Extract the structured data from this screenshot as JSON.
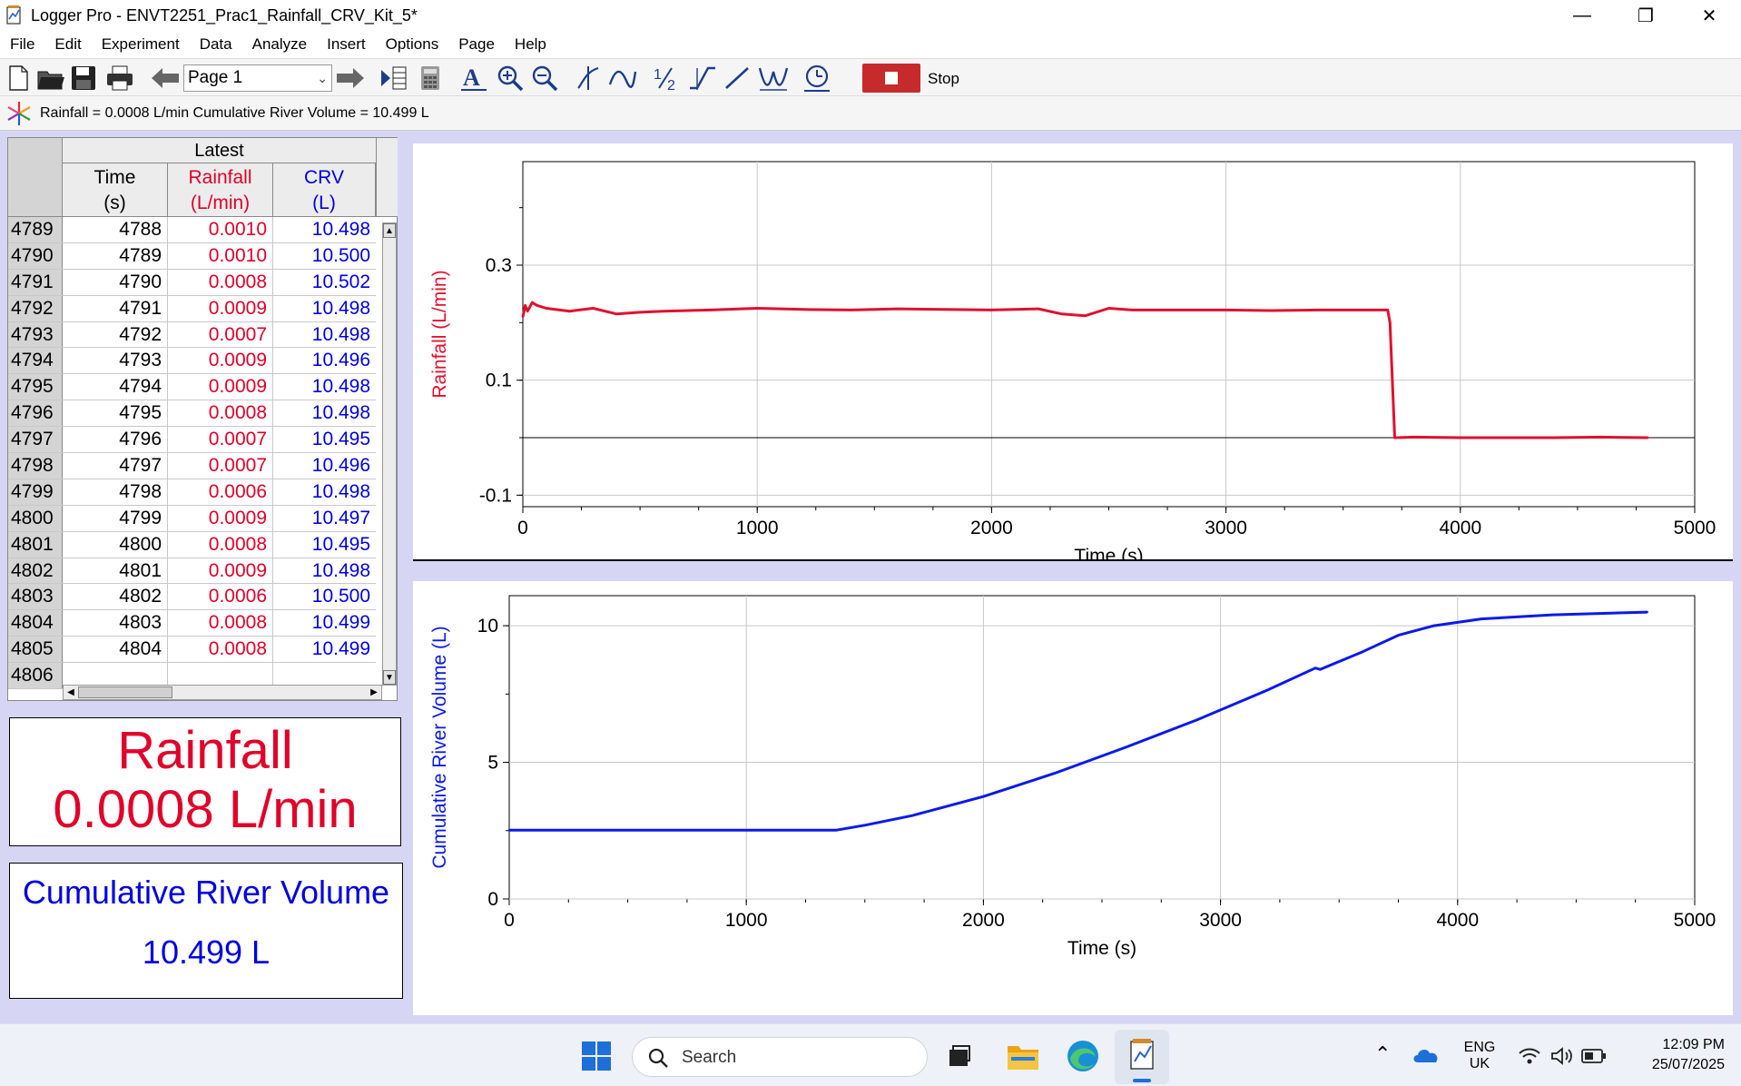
{
  "window": {
    "title": "Logger Pro - ENVT2251_Prac1_Rainfall_CRV_Kit_5*",
    "minimize_glyph": "—",
    "restore_glyph": "❐",
    "close_glyph": "✕"
  },
  "menu": [
    "File",
    "Edit",
    "Experiment",
    "Data",
    "Analyze",
    "Insert",
    "Options",
    "Page",
    "Help"
  ],
  "toolbar": {
    "page_select_value": "Page 1",
    "stop_label": "Stop"
  },
  "status": {
    "text": "Rainfall = 0.0008 L/min Cumulative River Volume = 10.499 L"
  },
  "table": {
    "group_label": "Latest",
    "columns": [
      {
        "name": "Time",
        "unit": "(s)",
        "color": "#000000"
      },
      {
        "name": "Rainfall",
        "unit": "(L/min)",
        "color": "#e0002a"
      },
      {
        "name": "CRV",
        "unit": "(L)",
        "color": "#0000e0"
      }
    ],
    "rows": [
      [
        "4789",
        "4788",
        "0.0010",
        "10.498"
      ],
      [
        "4790",
        "4789",
        "0.0010",
        "10.500"
      ],
      [
        "4791",
        "4790",
        "0.0008",
        "10.502"
      ],
      [
        "4792",
        "4791",
        "0.0009",
        "10.498"
      ],
      [
        "4793",
        "4792",
        "0.0007",
        "10.498"
      ],
      [
        "4794",
        "4793",
        "0.0009",
        "10.496"
      ],
      [
        "4795",
        "4794",
        "0.0009",
        "10.498"
      ],
      [
        "4796",
        "4795",
        "0.0008",
        "10.498"
      ],
      [
        "4797",
        "4796",
        "0.0007",
        "10.495"
      ],
      [
        "4798",
        "4797",
        "0.0007",
        "10.496"
      ],
      [
        "4799",
        "4798",
        "0.0006",
        "10.498"
      ],
      [
        "4800",
        "4799",
        "0.0009",
        "10.497"
      ],
      [
        "4801",
        "4800",
        "0.0008",
        "10.495"
      ],
      [
        "4802",
        "4801",
        "0.0009",
        "10.498"
      ],
      [
        "4803",
        "4802",
        "0.0006",
        "10.500"
      ],
      [
        "4804",
        "4803",
        "0.0008",
        "10.499"
      ],
      [
        "4805",
        "4804",
        "0.0008",
        "10.499"
      ],
      [
        "4806",
        "",
        "",
        ""
      ]
    ]
  },
  "meters": {
    "rainfall": {
      "name": "Rainfall",
      "value": "0.0008 L/min"
    },
    "crv": {
      "name": "Cumulative River Volume",
      "value": "10.499 L"
    }
  },
  "chart_data": [
    {
      "type": "line",
      "xlabel": "Time (s)",
      "ylabel": "Rainfall (L/min)",
      "xlim": [
        0,
        5000
      ],
      "ylim": [
        -0.12,
        0.48
      ],
      "xticks": [
        0,
        1000,
        2000,
        3000,
        4000,
        5000
      ],
      "yticks": [
        -0.1,
        0.1,
        0.3
      ],
      "grid": true,
      "zero_line": true,
      "color": "#e0102e",
      "series": [
        {
          "x": [
            0,
            10,
            20,
            40,
            60,
            100,
            200,
            300,
            400,
            500,
            600,
            800,
            1000,
            1200,
            1400,
            1600,
            1800,
            2000,
            2200,
            2300,
            2400,
            2500,
            2600,
            2800,
            3000,
            3200,
            3400,
            3600,
            3690,
            3700,
            3720,
            3730,
            3800,
            4000,
            4200,
            4400,
            4600,
            4800
          ],
          "y": [
            0.21,
            0.23,
            0.22,
            0.235,
            0.23,
            0.225,
            0.22,
            0.225,
            0.215,
            0.218,
            0.22,
            0.222,
            0.225,
            0.223,
            0.222,
            0.224,
            0.223,
            0.222,
            0.224,
            0.215,
            0.212,
            0.225,
            0.222,
            0.222,
            0.222,
            0.221,
            0.222,
            0.222,
            0.222,
            0.2,
            0.0,
            0.0,
            0.001,
            0.0,
            0.0,
            0.0,
            0.001,
            0.0
          ]
        }
      ]
    },
    {
      "type": "line",
      "xlabel": "Time (s)",
      "ylabel": "Cumulative River Volume (L)",
      "xlim": [
        0,
        5000
      ],
      "ylim": [
        0,
        11.1
      ],
      "xticks": [
        0,
        1000,
        2000,
        3000,
        4000,
        5000
      ],
      "yticks": [
        0,
        5,
        10
      ],
      "grid": true,
      "color": "#0a1ae6",
      "series": [
        {
          "x": [
            0,
            500,
            1000,
            1380,
            1500,
            1700,
            2000,
            2300,
            2600,
            2900,
            3200,
            3400,
            3420,
            3600,
            3750,
            3900,
            4100,
            4400,
            4800
          ],
          "y": [
            2.52,
            2.52,
            2.52,
            2.52,
            2.7,
            3.05,
            3.75,
            4.6,
            5.55,
            6.55,
            7.65,
            8.45,
            8.4,
            9.05,
            9.65,
            10.0,
            10.25,
            10.4,
            10.5
          ]
        }
      ]
    }
  ],
  "taskbar": {
    "search_label": "Search",
    "lang_top": "ENG",
    "lang_bottom": "UK",
    "time": "12:09 PM",
    "date": "25/07/2025"
  }
}
